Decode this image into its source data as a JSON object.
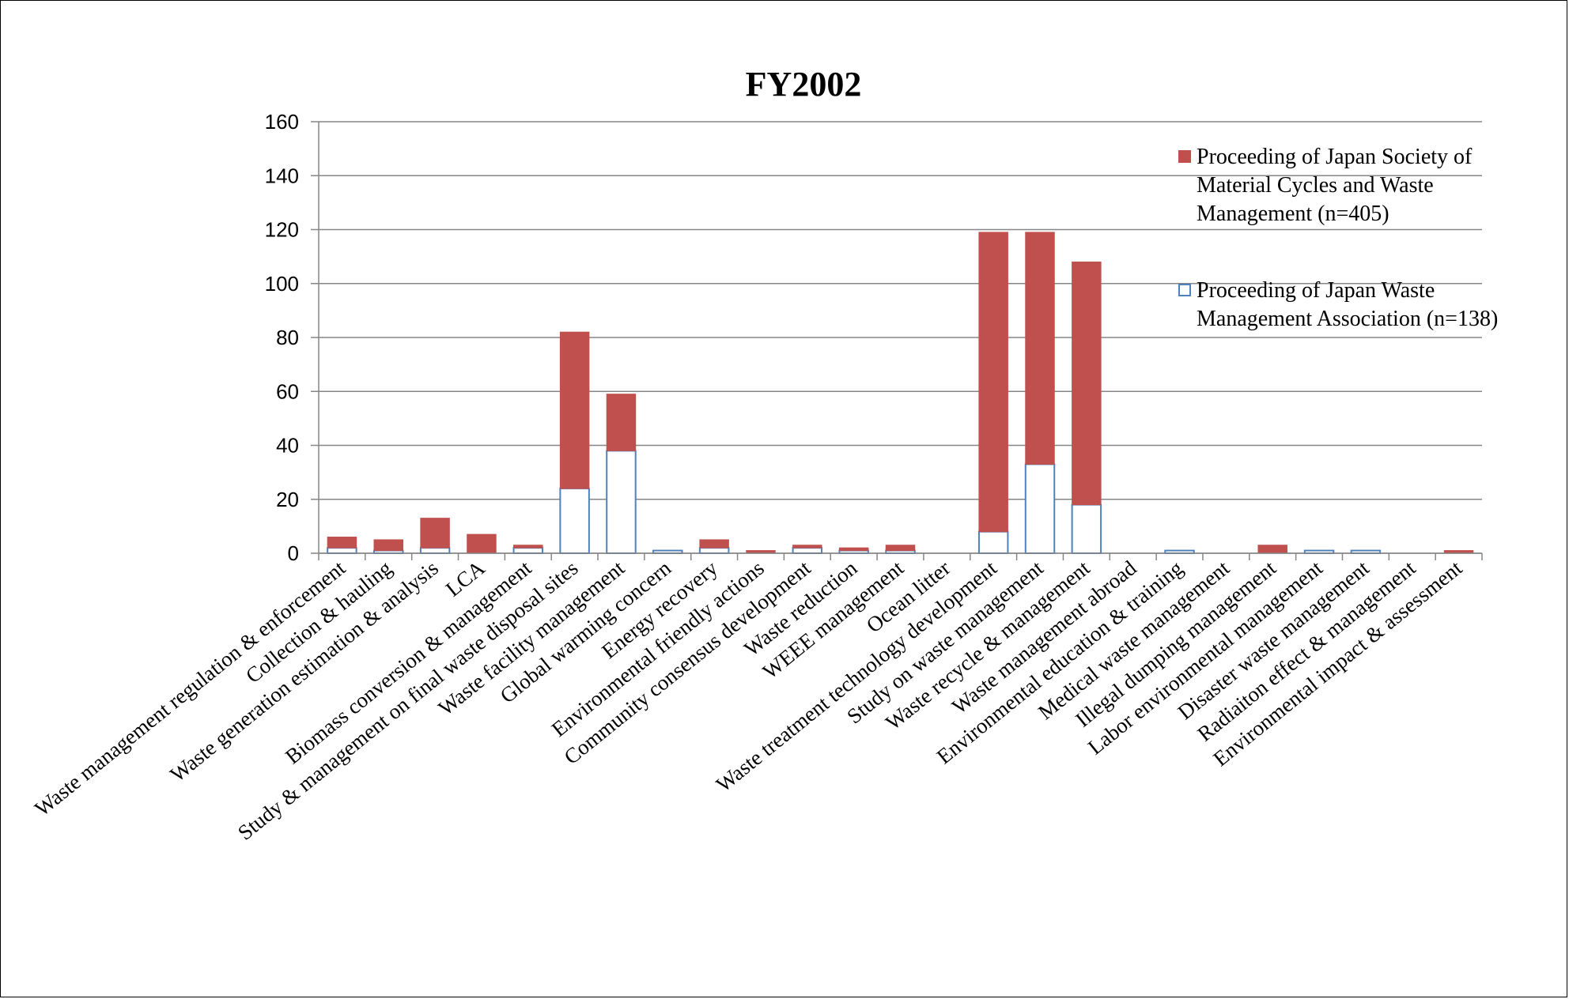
{
  "chart_data": {
    "type": "bar",
    "stacked": true,
    "title": "FY2002",
    "xlabel": "",
    "ylabel": "",
    "ylim": [
      0,
      160
    ],
    "yticks": [
      0,
      20,
      40,
      60,
      80,
      100,
      120,
      140,
      160
    ],
    "grid": true,
    "legend_position": "top-right",
    "categories": [
      "Waste management regulation & enforcement",
      "Collection & hauling",
      "Waste generation estimation & analysis",
      "LCA",
      "Biomass conversion & management",
      "Study & management on final waste disposal sites",
      "Waste facility management",
      "Global warming concern",
      "Energy recovery",
      "Environmental friendly actions",
      "Community consensus development",
      "Waste reduction",
      "WEEE management",
      "Ocean litter",
      "Waste treatment technology development",
      "Study on waste management",
      "Waste recycle & management",
      "Waste management abroad",
      "Environmental education & training",
      "Medical waste management",
      "Illegal dumping management",
      "Labor environmental management",
      "Disaster waste management",
      "Radiaiton effect & management",
      "Environmental impact & assessment"
    ],
    "series": [
      {
        "name": "Proceeding of Japan Waste Management Association (n=138)",
        "color": "#ffffff",
        "stroke": "#4f81bd",
        "values": [
          2,
          1,
          2,
          0,
          2,
          24,
          38,
          1,
          2,
          0,
          2,
          1,
          1,
          0,
          8,
          33,
          18,
          0,
          1,
          0,
          0,
          1,
          1,
          0,
          0
        ]
      },
      {
        "name": "Proceeding of Japan Society of Material Cycles and Waste Management (n=405)",
        "color": "#c0504d",
        "stroke": "#c0504d",
        "values": [
          4,
          4,
          11,
          7,
          1,
          58,
          21,
          0,
          3,
          1,
          1,
          1,
          2,
          0,
          111,
          86,
          90,
          0,
          0,
          0,
          3,
          0,
          0,
          0,
          1
        ]
      }
    ],
    "legend": [
      {
        "lines": [
          "Proceeding of Japan Society of",
          "Material Cycles and Waste",
          "Management (n=405)"
        ],
        "series": 1
      },
      {
        "lines": [
          "Proceeding of Japan Waste",
          "Management Association (n=138)"
        ],
        "series": 0
      }
    ]
  }
}
